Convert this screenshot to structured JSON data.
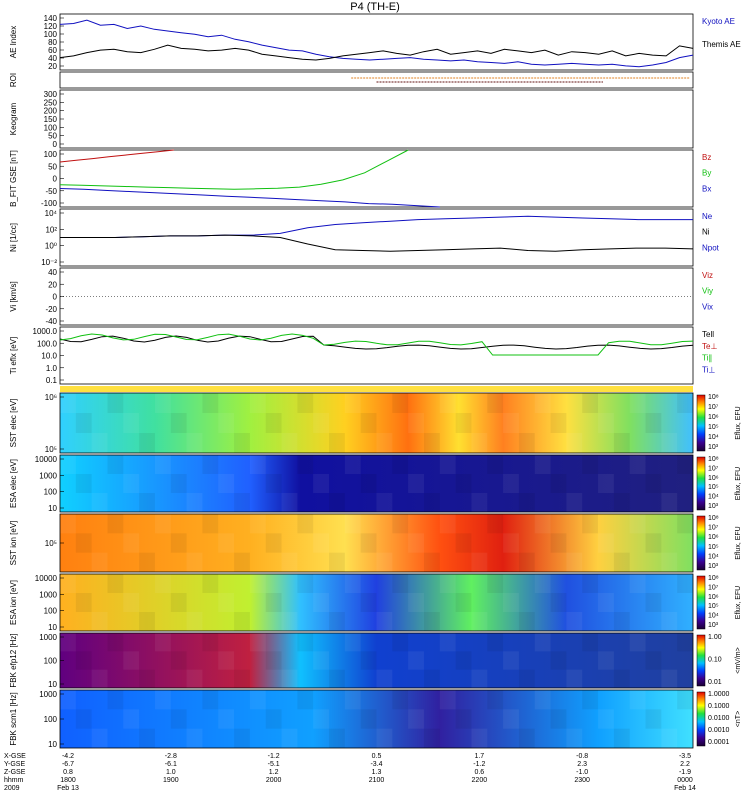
{
  "title": "P4 (TH-E)",
  "colors": {
    "black": "#000000",
    "blue": "#1010c0",
    "red": "#c01010",
    "green": "#10c010"
  },
  "chart_data": [
    {
      "type": "line",
      "panel_key": "ae",
      "ylabel": "AE Index",
      "yticks": [
        "140",
        "120",
        "100",
        "80",
        "60",
        "40",
        "20"
      ],
      "series": [
        {
          "name": "Kyoto AE",
          "color": "blue",
          "values": [
            120,
            122,
            130,
            118,
            120,
            110,
            116,
            108,
            104,
            100,
            96,
            90,
            94,
            84,
            78,
            70,
            64,
            58,
            56,
            48,
            42,
            38,
            36,
            34,
            36,
            38,
            40,
            36,
            34,
            32,
            34,
            30,
            28,
            26,
            30,
            24,
            22,
            24,
            26,
            24,
            22,
            24,
            20,
            18,
            22,
            28,
            40,
            46
          ]
        },
        {
          "name": "Themis AE",
          "color": "black",
          "values": [
            40,
            44,
            52,
            58,
            60,
            54,
            52,
            60,
            70,
            62,
            60,
            56,
            58,
            62,
            58,
            48,
            44,
            40,
            36,
            34,
            38,
            44,
            48,
            52,
            56,
            50,
            46,
            54,
            60,
            48,
            52,
            56,
            50,
            60,
            56,
            52,
            58,
            46,
            54,
            52,
            48,
            56,
            44,
            50,
            46,
            44,
            68,
            62
          ]
        }
      ]
    },
    {
      "type": "line",
      "panel_key": "roi",
      "ylabel": "ROI"
    },
    {
      "type": "line",
      "panel_key": "keogram",
      "ylabel": "Keogram",
      "yticks": [
        "300",
        "250",
        "200",
        "150",
        "100",
        "50",
        "0"
      ]
    },
    {
      "type": "line",
      "panel_key": "bfit",
      "ylabel": "B_FIT GSE [nT]",
      "yticks": [
        "100",
        "50",
        "0",
        "-50",
        "-100"
      ],
      "ylim": [
        -100,
        100
      ],
      "series": [
        {
          "name": "Bz",
          "color": "red",
          "values": [
            58,
            64,
            70,
            76,
            82,
            88,
            94,
            100
          ]
        },
        {
          "name": "By",
          "color": "green",
          "values": [
            -22,
            -24,
            -26,
            -28,
            -30,
            -32,
            -34,
            -36,
            -38,
            -36,
            -34,
            -30,
            -20,
            -5,
            20,
            60,
            100
          ]
        },
        {
          "name": "Bx",
          "color": "blue",
          "values": [
            -35,
            -38,
            -42,
            -46,
            -50,
            -54,
            -58,
            -62,
            -66,
            -70,
            -74,
            -78,
            -82,
            -88,
            -90,
            -95,
            -100
          ]
        }
      ]
    },
    {
      "type": "line",
      "panel_key": "ni",
      "ylabel": "Ni [1/cc]",
      "yticks": [
        "10⁴",
        "10²",
        "10⁰",
        "10⁻²"
      ],
      "series": [
        {
          "name": "Ne",
          "color": "blue",
          "values": [
            1.0,
            1.0,
            1.0,
            1.1,
            1.2,
            1.2,
            1.3,
            1.3,
            1.5,
            2.2,
            2.6,
            2.8,
            3.0,
            3.2,
            3.3,
            3.4,
            3.5,
            3.6,
            3.5,
            3.4,
            3.3,
            3.2,
            3.2,
            3.2
          ]
        },
        {
          "name": "Ni",
          "color": "black",
          "values": [
            1.0,
            1.0,
            1.0,
            1.1,
            1.2,
            1.2,
            1.3,
            1.2,
            1.0,
            0.2,
            -0.5,
            -0.6,
            -0.7,
            -0.6,
            -0.5,
            -0.4,
            -0.3,
            -0.6,
            -0.7,
            -0.5,
            -0.4,
            -0.3,
            -0.3,
            -0.4
          ]
        },
        {
          "name": "Npot",
          "color": "blue",
          "values": []
        }
      ]
    },
    {
      "type": "line",
      "panel_key": "vi",
      "ylabel": "Vi [km/s]",
      "yticks": [
        "40",
        "20",
        "0",
        "-20",
        "-40"
      ],
      "series": [
        {
          "name": "Viz",
          "color": "red",
          "values": []
        },
        {
          "name": "Viy",
          "color": "green",
          "values": []
        },
        {
          "name": "Vix",
          "color": "blue",
          "values": []
        }
      ]
    },
    {
      "type": "line",
      "panel_key": "ti",
      "ylabel": "Ti eflx [eV]",
      "yticks": [
        "1000.0",
        "100.0",
        "10.0",
        "1.0",
        "0.1"
      ],
      "series": [
        {
          "name": "Tell",
          "color": "black",
          "values": []
        },
        {
          "name": "Te⊥",
          "color": "red",
          "values": []
        },
        {
          "name": "Ti∥",
          "color": "green",
          "values": []
        },
        {
          "name": "Ti⊥",
          "color": "blue",
          "values": []
        }
      ]
    },
    {
      "type": "heatmap",
      "panel_key": "sst_e",
      "ylabel": "SST elec [eV]",
      "yticks": [
        "10⁶",
        "10⁵"
      ],
      "colorbar_label": "Eflux, EFU",
      "colorbar_ticks": [
        "10⁸",
        "10⁷",
        "10⁶",
        "10⁵",
        "10⁴",
        "10³"
      ]
    },
    {
      "type": "heatmap",
      "panel_key": "esa_e",
      "ylabel": "ESA elec [eV]",
      "yticks": [
        "10000",
        "1000",
        "100",
        "10"
      ],
      "colorbar_label": "Eflux, EFU",
      "colorbar_ticks": [
        "10⁸",
        "10⁷",
        "10⁶",
        "10⁵",
        "10⁴",
        "10³"
      ]
    },
    {
      "type": "heatmap",
      "panel_key": "sst_i",
      "ylabel": "SST ion [eV]",
      "yticks": [
        "10⁵"
      ],
      "colorbar_label": "Eflux, EFU",
      "colorbar_ticks": [
        "10⁸",
        "10⁷",
        "10⁶",
        "10⁵",
        "10⁴",
        "10³"
      ]
    },
    {
      "type": "heatmap",
      "panel_key": "esa_i",
      "ylabel": "ESA ion [eV]",
      "yticks": [
        "10000",
        "1000",
        "100",
        "10"
      ],
      "colorbar_label": "Eflux, EFU",
      "colorbar_ticks": [
        "10⁸",
        "10⁷",
        "10⁶",
        "10⁵",
        "10⁴",
        "10³"
      ]
    },
    {
      "type": "heatmap",
      "panel_key": "fbk_e",
      "ylabel": "FBK efp12 [Hz]",
      "yticks": [
        "1000",
        "100",
        "10"
      ],
      "colorbar_label": "<mV/m>",
      "colorbar_ticks": [
        "1.00",
        "0.10",
        "0.01"
      ]
    },
    {
      "type": "heatmap",
      "panel_key": "fbk_b",
      "ylabel": "FBK scm1 [Hz]",
      "yticks": [
        "1000",
        "100",
        "10"
      ],
      "colorbar_label": "<nT>",
      "colorbar_ticks": [
        "1.0000",
        "0.1000",
        "0.0100",
        "0.0010",
        "0.0001"
      ]
    }
  ],
  "time_axis": {
    "row_labels": [
      "X-GSE",
      "Y-GSE",
      "Z-GSE",
      "hhmm",
      "2009"
    ],
    "columns": [
      {
        "values": [
          "-4.2",
          "-6.7",
          "0.8",
          "1800",
          "Feb 13"
        ]
      },
      {
        "values": [
          "-2.8",
          "-6.1",
          "1.0",
          "1900",
          ""
        ]
      },
      {
        "values": [
          "-1.2",
          "-5.1",
          "1.2",
          "2000",
          ""
        ]
      },
      {
        "values": [
          "0.5",
          "-3.4",
          "1.3",
          "2100",
          ""
        ]
      },
      {
        "values": [
          "1.7",
          "-1.2",
          "0.6",
          "2200",
          ""
        ]
      },
      {
        "values": [
          "-0.8",
          "2.3",
          "-1.0",
          "2300",
          ""
        ]
      },
      {
        "values": [
          "-3.5",
          "2.2",
          "-1.9",
          "0000",
          "Feb 14"
        ]
      }
    ]
  }
}
